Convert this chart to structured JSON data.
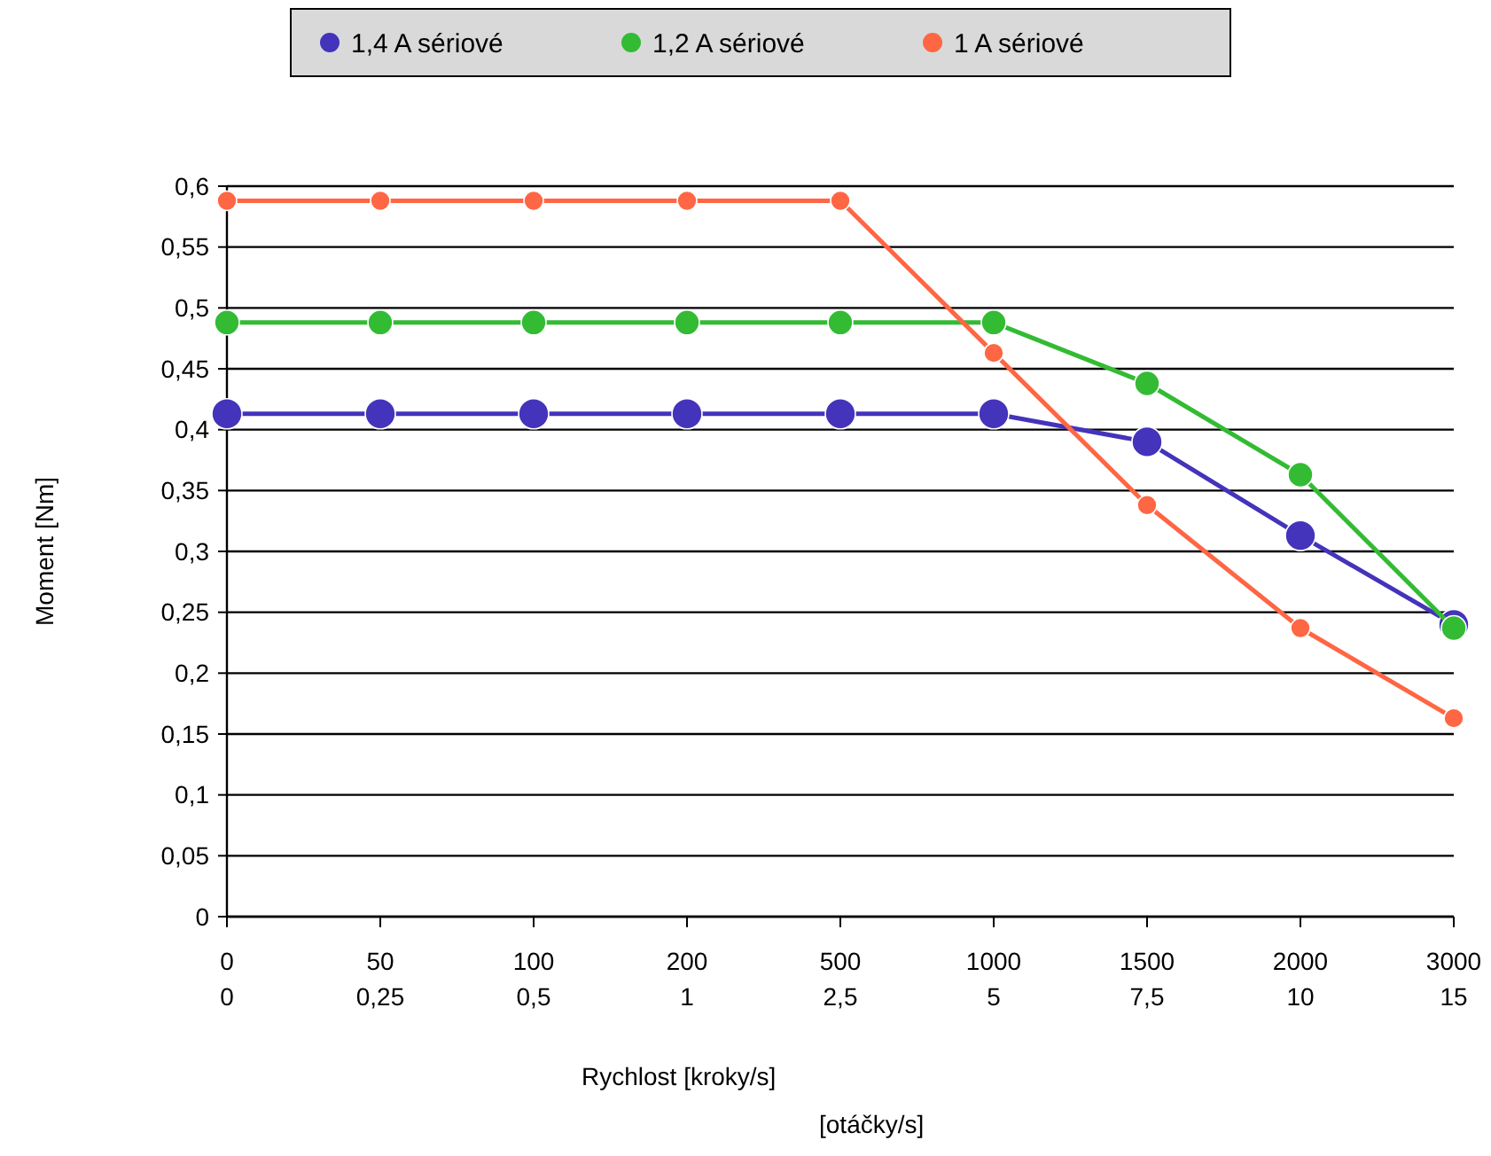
{
  "chart_data": {
    "type": "line",
    "xlabel": "Rychlost [kroky/s]\n[otáčky/s]",
    "ylabel": "Moment [Nm]",
    "categories": [
      "0\n0",
      "50\n0,25",
      "100\n0,5",
      "200\n1",
      "500\n2,5",
      "1000\n5",
      "1500\n7,5",
      "2000\n10",
      "3000\n15"
    ],
    "series": [
      {
        "name": "1,4 A sériové",
        "color": "#4433bb",
        "values": [
          0.413,
          0.413,
          0.413,
          0.413,
          0.413,
          0.413,
          0.39,
          0.313,
          0.24
        ]
      },
      {
        "name": "1,2 A sériové",
        "color": "#33bb33",
        "values": [
          0.488,
          0.488,
          0.488,
          0.488,
          0.488,
          0.488,
          0.438,
          0.363,
          0.237
        ]
      },
      {
        "name": "1 A sériové",
        "color": "#ff6644",
        "values": [
          0.588,
          0.588,
          0.588,
          0.588,
          0.588,
          0.463,
          0.338,
          0.237,
          0.163
        ]
      }
    ],
    "ylim": [
      0,
      0.6
    ],
    "yticks": [
      0,
      {
        "value": 0.05,
        "label": "0,05"
      },
      {
        "value": 0.1,
        "label": "0,1"
      },
      {
        "value": 0.15,
        "label": "0,15"
      },
      {
        "value": 0.2,
        "label": "0,2"
      },
      {
        "value": 0.25,
        "label": "0,25"
      },
      {
        "value": 0.3,
        "label": "0,3"
      },
      {
        "value": 0.35,
        "label": "0,35"
      },
      {
        "value": 0.4,
        "label": "0,4"
      },
      {
        "value": 0.45,
        "label": "0,45"
      },
      {
        "value": 0.5,
        "label": "0,5"
      },
      {
        "value": 0.55,
        "label": "0,55"
      },
      {
        "value": 0.6,
        "label": "0,6"
      }
    ],
    "grid": "y",
    "legend": "top",
    "marker": "circle",
    "line_style": "solid"
  }
}
